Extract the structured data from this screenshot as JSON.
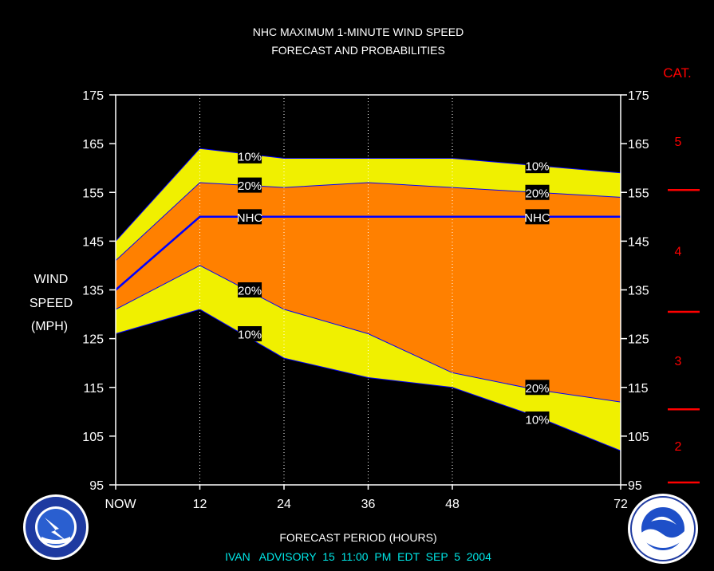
{
  "title_line1": "NHC MAXIMUM 1-MINUTE WIND SPEED",
  "title_line2": "FORECAST AND PROBABILITIES",
  "cat_header": "CAT.",
  "ylabel": [
    "WIND",
    "SPEED",
    "(MPH)"
  ],
  "xlabel": "FORECAST PERIOD (HOURS)",
  "advisory": "IVAN   ADVISORY  15  11:00  PM  EDT  SEP  5  2004",
  "colors": {
    "band_outer": "#f0f000",
    "band_inner": "#ff8000",
    "forecast_line": "#0000ff",
    "category": "#ff0000",
    "advisory": "#00e8e8"
  },
  "chart_data": {
    "type": "area",
    "x_ticks": [
      0,
      12,
      24,
      36,
      48,
      72
    ],
    "x_tick_labels": [
      "NOW",
      "12",
      "24",
      "36",
      "48",
      "72"
    ],
    "y_ticks": [
      95,
      105,
      115,
      125,
      135,
      145,
      155,
      165,
      175
    ],
    "y_tick_labels": [
      "95",
      "105",
      "115",
      "125",
      "135",
      "145",
      "155",
      "165",
      "175"
    ],
    "xlim": [
      0,
      72
    ],
    "ylim": [
      95,
      175
    ],
    "vertical_grid": [
      12,
      24,
      36,
      48
    ],
    "x": [
      0,
      12,
      24,
      36,
      48,
      60,
      72
    ],
    "series": [
      {
        "name": "10%",
        "values": [
          145,
          164,
          162,
          162,
          162,
          160.5,
          159
        ]
      },
      {
        "name": "20%",
        "values": [
          141,
          157,
          156,
          157,
          156,
          155,
          154
        ]
      },
      {
        "name": "NHC",
        "values": [
          135,
          150,
          150,
          150,
          150,
          150,
          150
        ]
      },
      {
        "name": "20%",
        "values": [
          131,
          140,
          131,
          126,
          118,
          114.5,
          112
        ]
      },
      {
        "name": "10%",
        "values": [
          126,
          131,
          121,
          117,
          115,
          109,
          102
        ]
      }
    ],
    "series_labels": [
      {
        "text": "10%",
        "x": 19,
        "y": 162.5
      },
      {
        "text": "20%",
        "x": 19,
        "y": 156.5
      },
      {
        "text": "NHC",
        "x": 19,
        "y": 150
      },
      {
        "text": "20%",
        "x": 19,
        "y": 135
      },
      {
        "text": "10%",
        "x": 19,
        "y": 126
      },
      {
        "text": "10%",
        "x": 60,
        "y": 160.5
      },
      {
        "text": "20%",
        "x": 60,
        "y": 155
      },
      {
        "text": "NHC",
        "x": 60,
        "y": 150
      },
      {
        "text": "20%",
        "x": 60,
        "y": 115
      },
      {
        "text": "10%",
        "x": 60,
        "y": 108.5
      }
    ],
    "categories": [
      {
        "label": "2",
        "min": 96,
        "max": 110
      },
      {
        "label": "3",
        "min": 111,
        "max": 130
      },
      {
        "label": "4",
        "min": 131,
        "max": 155
      },
      {
        "label": "5",
        "min": 156,
        "max": 175
      }
    ],
    "category_thresholds": [
      95.5,
      110.5,
      130.5,
      155.5
    ]
  },
  "logos": {
    "left_name": "nws-logo",
    "right_name": "noaa-logo"
  }
}
